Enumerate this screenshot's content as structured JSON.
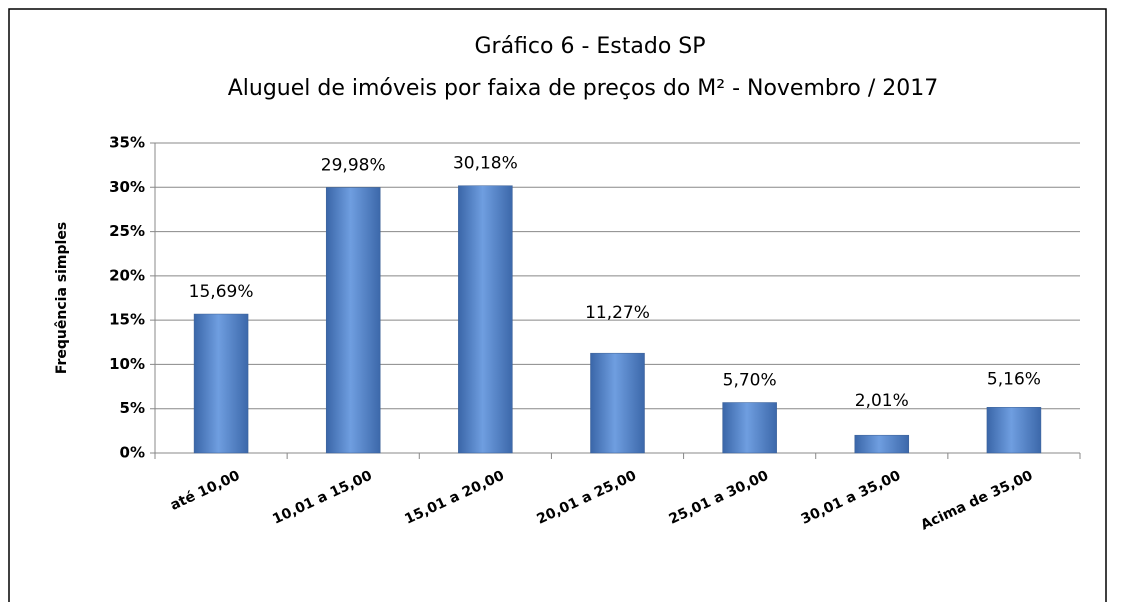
{
  "chart_data": {
    "type": "bar",
    "title": [
      "Gráfico 6 - Estado SP",
      "Aluguel de imóveis por faixa de preços do M² -   Novembro / 2017"
    ],
    "y_label": "Frequência simples",
    "categories": [
      "até 10,00",
      "10,01 a 15,00",
      "15,01 a 20,00",
      "20,01 a 25,00",
      "25,01 a 30,00",
      "30,01 a 35,00",
      "Acima de 35,00"
    ],
    "values": [
      15.69,
      29.98,
      30.18,
      11.27,
      5.7,
      2.01,
      5.16
    ],
    "value_labels": [
      "15,69%",
      "29,98%",
      "30,18%",
      "11,27%",
      "5,70%",
      "2,01%",
      "5,16%"
    ],
    "color": "#4f81bd",
    "ylim": [
      0,
      35
    ],
    "yticks": [
      {
        "value": 0,
        "label": "0%"
      },
      {
        "value": 5,
        "label": "5%"
      },
      {
        "value": 10,
        "label": "10%"
      },
      {
        "value": 15,
        "label": "15%"
      },
      {
        "value": 20,
        "label": "20%"
      },
      {
        "value": 25,
        "label": "25%"
      },
      {
        "value": 30,
        "label": "30%"
      },
      {
        "value": 35,
        "label": "35%"
      }
    ],
    "grid": true
  }
}
